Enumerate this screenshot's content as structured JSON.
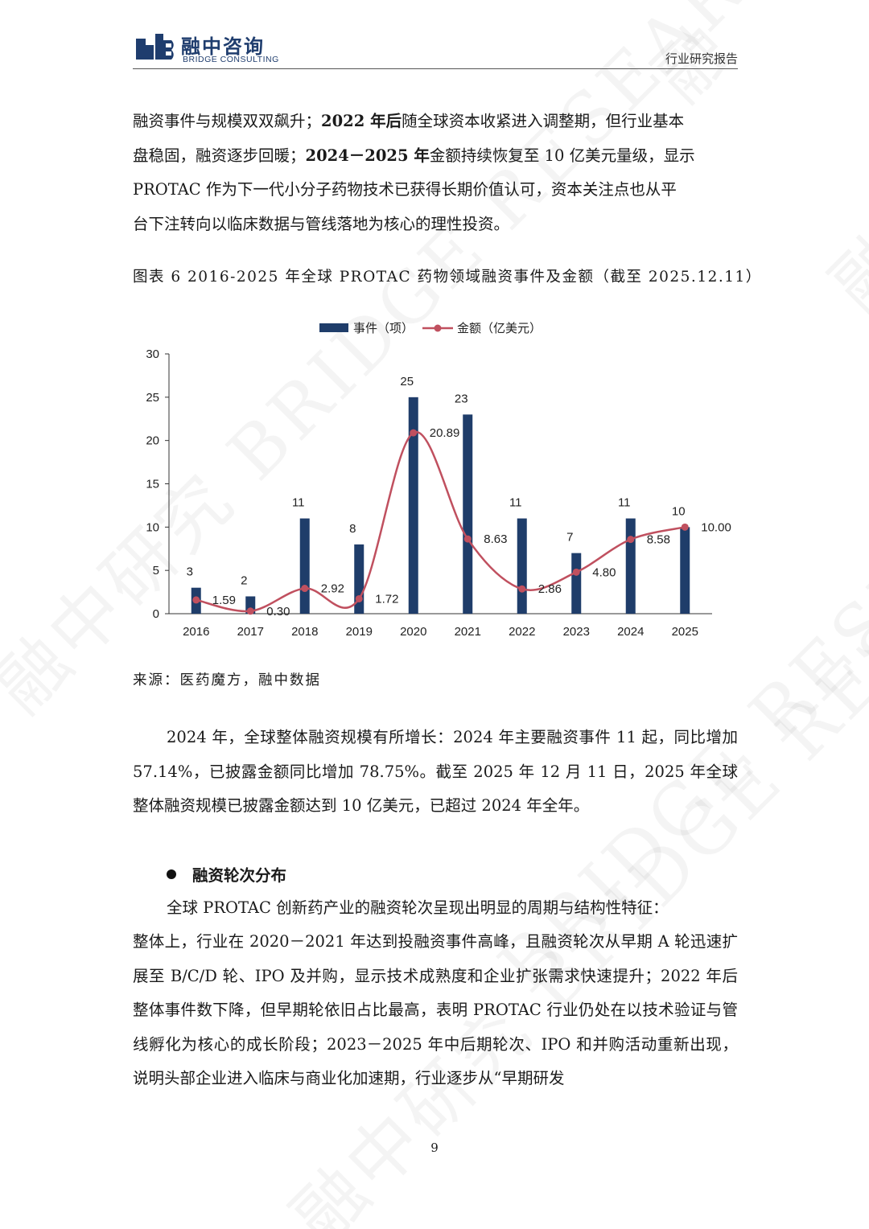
{
  "header": {
    "logo_cn": "融中咨询",
    "logo_en": "BRIDGE CONSULTING",
    "report_type": "行业研究报告"
  },
  "watermark": {
    "text_cn": "融中研究",
    "text_en": "BRIDGE RESEARCH"
  },
  "paragraph1": {
    "l1a": "融资事件与规模双双飙升；",
    "l1b": "2022 年后",
    "l1c": "随全球资本收紧进入调整期，但行业基本",
    "l2a": "盘稳固，融资逐步回暖；",
    "l2b": "2024－2025 年",
    "l2c": "金额持续恢复至 10 亿美元量级，显示",
    "l3": "PROTAC 作为下一代小分子药物技术已获得长期价值认可，资本关注点也从平",
    "l4": "台下注转向以临床数据与管线落地为核心的理性投资。"
  },
  "figure": {
    "caption": "图表  6 2016-2025 年全球 PROTAC 药物领域融资事件及金额（截至 2025.12.11）",
    "source": "来源：医药魔方，融中数据"
  },
  "chart_data": {
    "type": "bar",
    "title": "",
    "xlabel": "",
    "ylabel": "",
    "legend_position": "top",
    "grid": false,
    "ylim": [
      0,
      30
    ],
    "yticks": [
      "0",
      "5",
      "10",
      "15",
      "20",
      "25",
      "30"
    ],
    "categories": [
      "2016",
      "2017",
      "2018",
      "2019",
      "2020",
      "2021",
      "2022",
      "2023",
      "2024",
      "2025"
    ],
    "series": [
      {
        "name": "事件（项）",
        "type": "bar",
        "color": "#1f3d6a",
        "values": [
          3,
          2,
          11,
          8,
          25,
          23,
          11,
          7,
          11,
          10
        ],
        "labels": [
          "3",
          "2",
          "11",
          "8",
          "25",
          "23",
          "11",
          "7",
          "11",
          "10"
        ]
      },
      {
        "name": "金额（亿美元）",
        "type": "line",
        "smooth": true,
        "color": "#c0505f",
        "values": [
          1.59,
          0.3,
          2.92,
          1.72,
          20.89,
          8.63,
          2.86,
          4.8,
          8.58,
          10.0
        ],
        "labels": [
          "1.59",
          "0.30",
          "2.92",
          "1.72",
          "20.89",
          "8.63",
          "2.86",
          "4.80",
          "8.58",
          "10.00"
        ]
      }
    ]
  },
  "paragraph2": {
    "text": "2024 年，全球整体融资规模有所增长：2024 年主要融资事件 11 起，同比增加 57.14%，已披露金额同比增加 78.75%。截至 2025 年 12 月 11 日，2025 年全球整体融资规模已披露金额达到 10 亿美元，已超过 2024 年全年。"
  },
  "section": {
    "heading": "融资轮次分布",
    "intro": "全球 PROTAC 创新药产业的融资轮次呈现出明显的周期与结构性特征：",
    "body": "整体上，行业在 2020－2021 年达到投融资事件高峰，且融资轮次从早期 A 轮迅速扩展至 B/C/D 轮、IPO 及并购，显示技术成熟度和企业扩张需求快速提升；2022 年后整体事件数下降，但早期轮依旧占比最高，表明 PROTAC 行业仍处在以技术验证与管线孵化为核心的成长阶段；2023－2025 年中后期轮次、IPO 和并购活动重新出现，说明头部企业进入临床与商业化加速期，行业逐步从“早期研发"
  },
  "page": {
    "number": "9"
  }
}
